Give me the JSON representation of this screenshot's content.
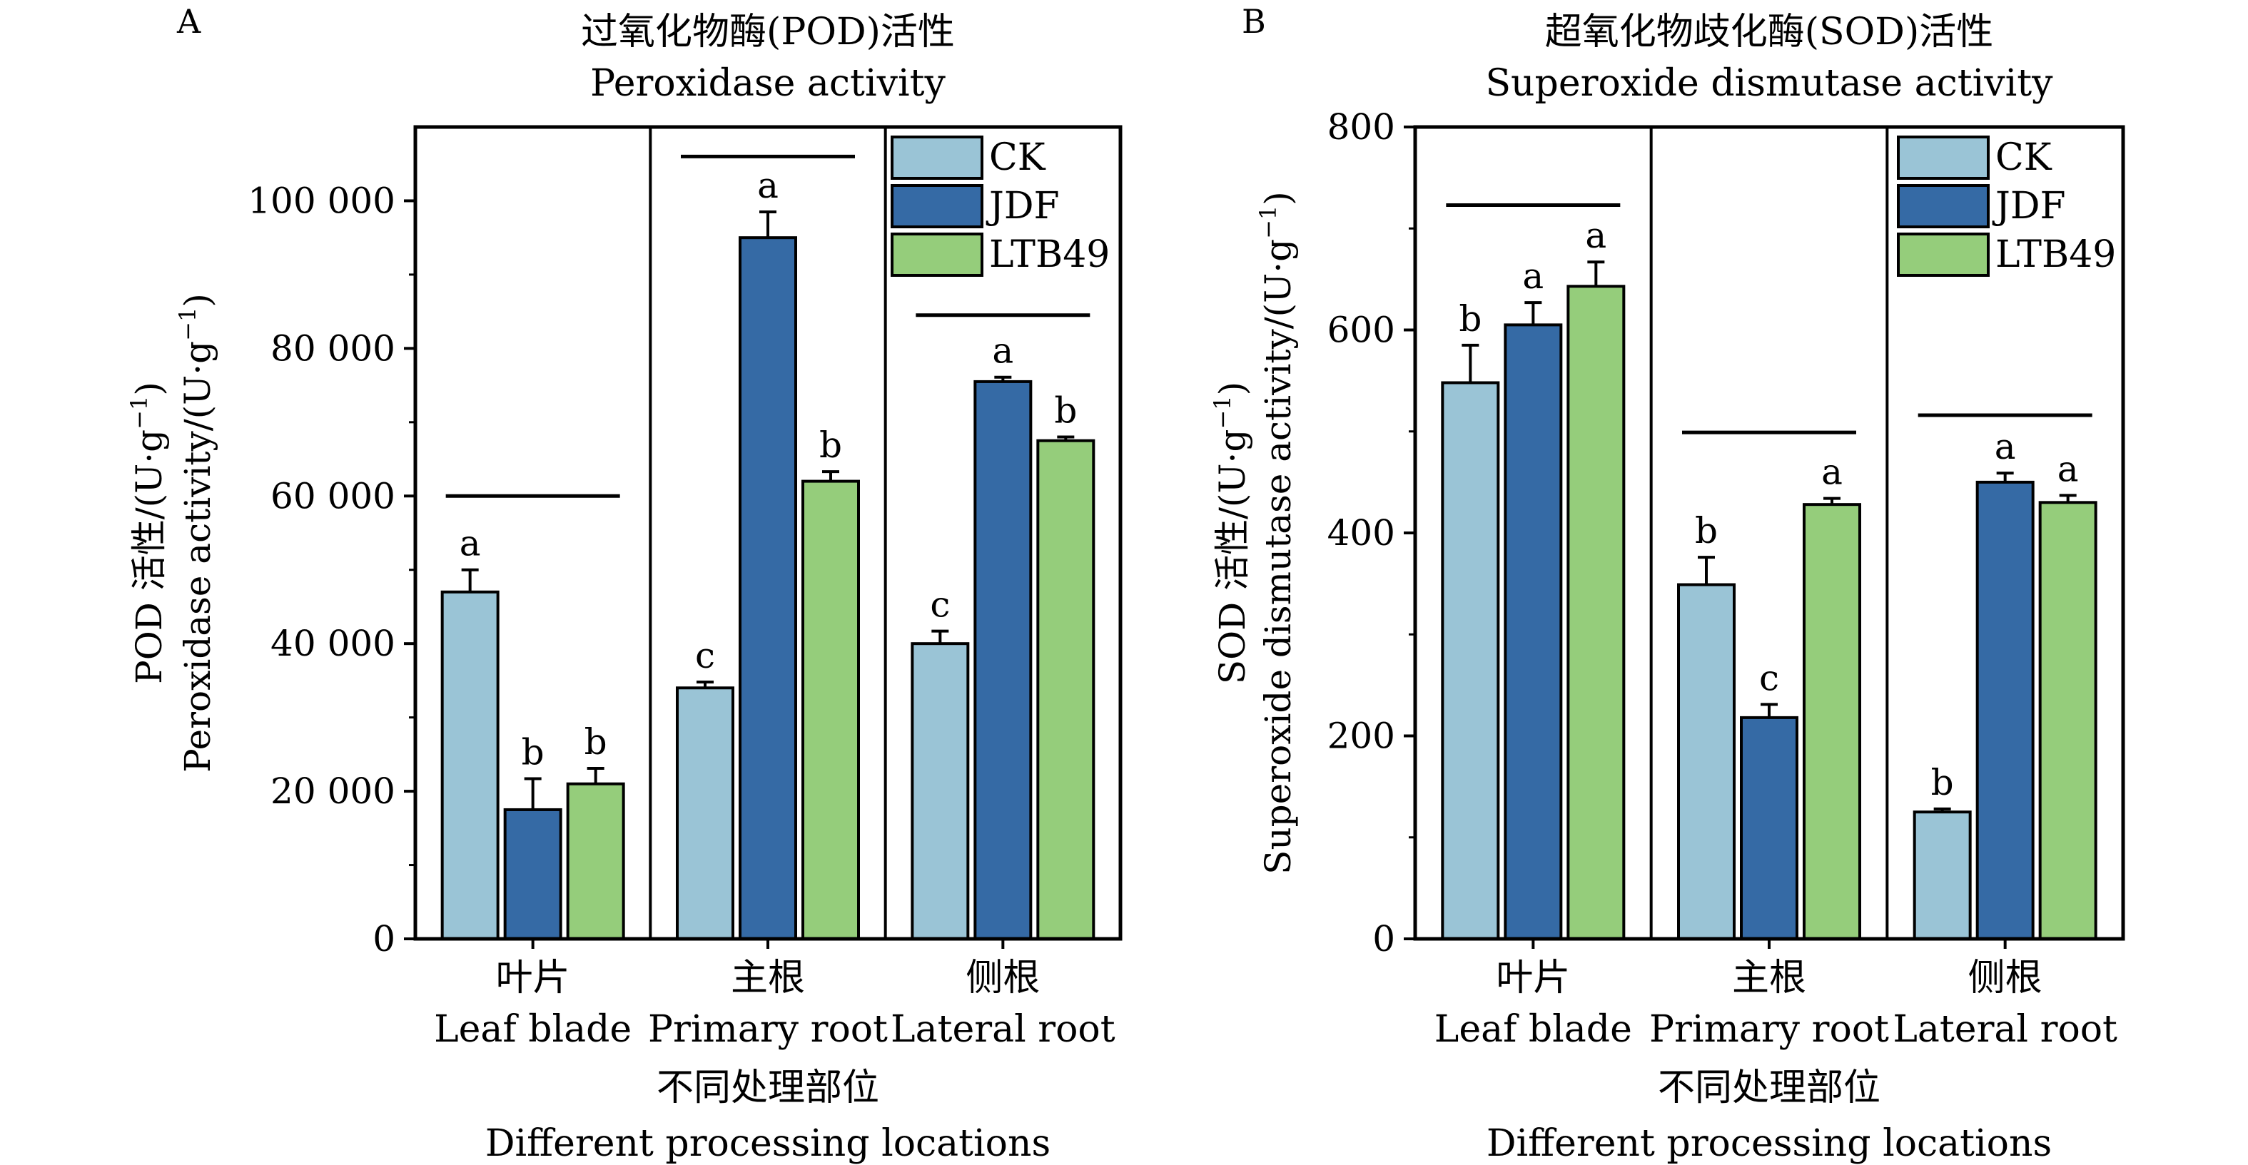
{
  "colors": {
    "CK": "#9ac4d6",
    "JDF": "#356aa5",
    "LTB49": "#95cd7b",
    "axis": "#000000"
  },
  "chart_data": [
    {
      "type": "bar",
      "panel": "A",
      "title_cn": "过氧化物酶(POD)活性",
      "title_en": "Peroxidase activity",
      "ylabel_cn": "POD 活性/(U·g",
      "ylabel_en": "Peroxidase activity/(U·g",
      "ylabel_sup": "−1",
      "ylabel_close": ")",
      "xlabel_cn": "不同处理部位",
      "xlabel_en": "Different processing locations",
      "ylim": [
        0,
        110000
      ],
      "yticks": [
        0,
        20000,
        40000,
        60000,
        80000,
        100000
      ],
      "ytick_labels": [
        "0",
        "20 000",
        "40 000",
        "60 000",
        "80 000",
        "100 000"
      ],
      "minor_step": 10000,
      "legend_position": "top-right",
      "categories_cn": [
        "叶片",
        "主根",
        "侧根"
      ],
      "categories_en": [
        "Leaf blade",
        "Primary root",
        "Lateral root"
      ],
      "series": [
        {
          "name": "CK",
          "values": [
            47000,
            34000,
            40000
          ],
          "errors": [
            3000,
            800,
            1700
          ],
          "letters": [
            "a",
            "c",
            "c"
          ]
        },
        {
          "name": "JDF",
          "values": [
            17500,
            95000,
            75500
          ],
          "errors": [
            4200,
            3500,
            600
          ],
          "letters": [
            "b",
            "a",
            "a"
          ]
        },
        {
          "name": "LTB49",
          "values": [
            21000,
            62000,
            67500
          ],
          "errors": [
            2100,
            1300,
            500
          ],
          "letters": [
            "b",
            "b",
            "b"
          ]
        }
      ],
      "group_lines": [
        60000,
        106000,
        84500
      ]
    },
    {
      "type": "bar",
      "panel": "B",
      "title_cn": "超氧化物歧化酶(SOD)活性",
      "title_en": "Superoxide dismutase activity",
      "ylabel_cn": "SOD 活性/(U·g",
      "ylabel_en": "Superoxide dismutase activity/(U·g",
      "ylabel_sup": "−1",
      "ylabel_close": ")",
      "xlabel_cn": "不同处理部位",
      "xlabel_en": "Different processing locations",
      "ylim": [
        0,
        800
      ],
      "yticks": [
        0,
        200,
        400,
        600,
        800
      ],
      "ytick_labels": [
        "0",
        "200",
        "400",
        "600",
        "800"
      ],
      "minor_step": 100,
      "legend_position": "top-right",
      "categories_cn": [
        "叶片",
        "主根",
        "侧根"
      ],
      "categories_en": [
        "Leaf blade",
        "Primary root",
        "Lateral root"
      ],
      "series": [
        {
          "name": "CK",
          "values": [
            548,
            349,
            125
          ],
          "errors": [
            37,
            27,
            3
          ],
          "letters": [
            "b",
            "b",
            "b"
          ]
        },
        {
          "name": "JDF",
          "values": [
            605,
            218,
            450
          ],
          "errors": [
            22,
            13,
            9
          ],
          "letters": [
            "a",
            "c",
            "a"
          ]
        },
        {
          "name": "LTB49",
          "values": [
            643,
            428,
            430
          ],
          "errors": [
            24,
            6,
            7
          ],
          "letters": [
            "a",
            "a",
            "a"
          ]
        }
      ],
      "group_lines": [
        723,
        499,
        516
      ]
    }
  ]
}
